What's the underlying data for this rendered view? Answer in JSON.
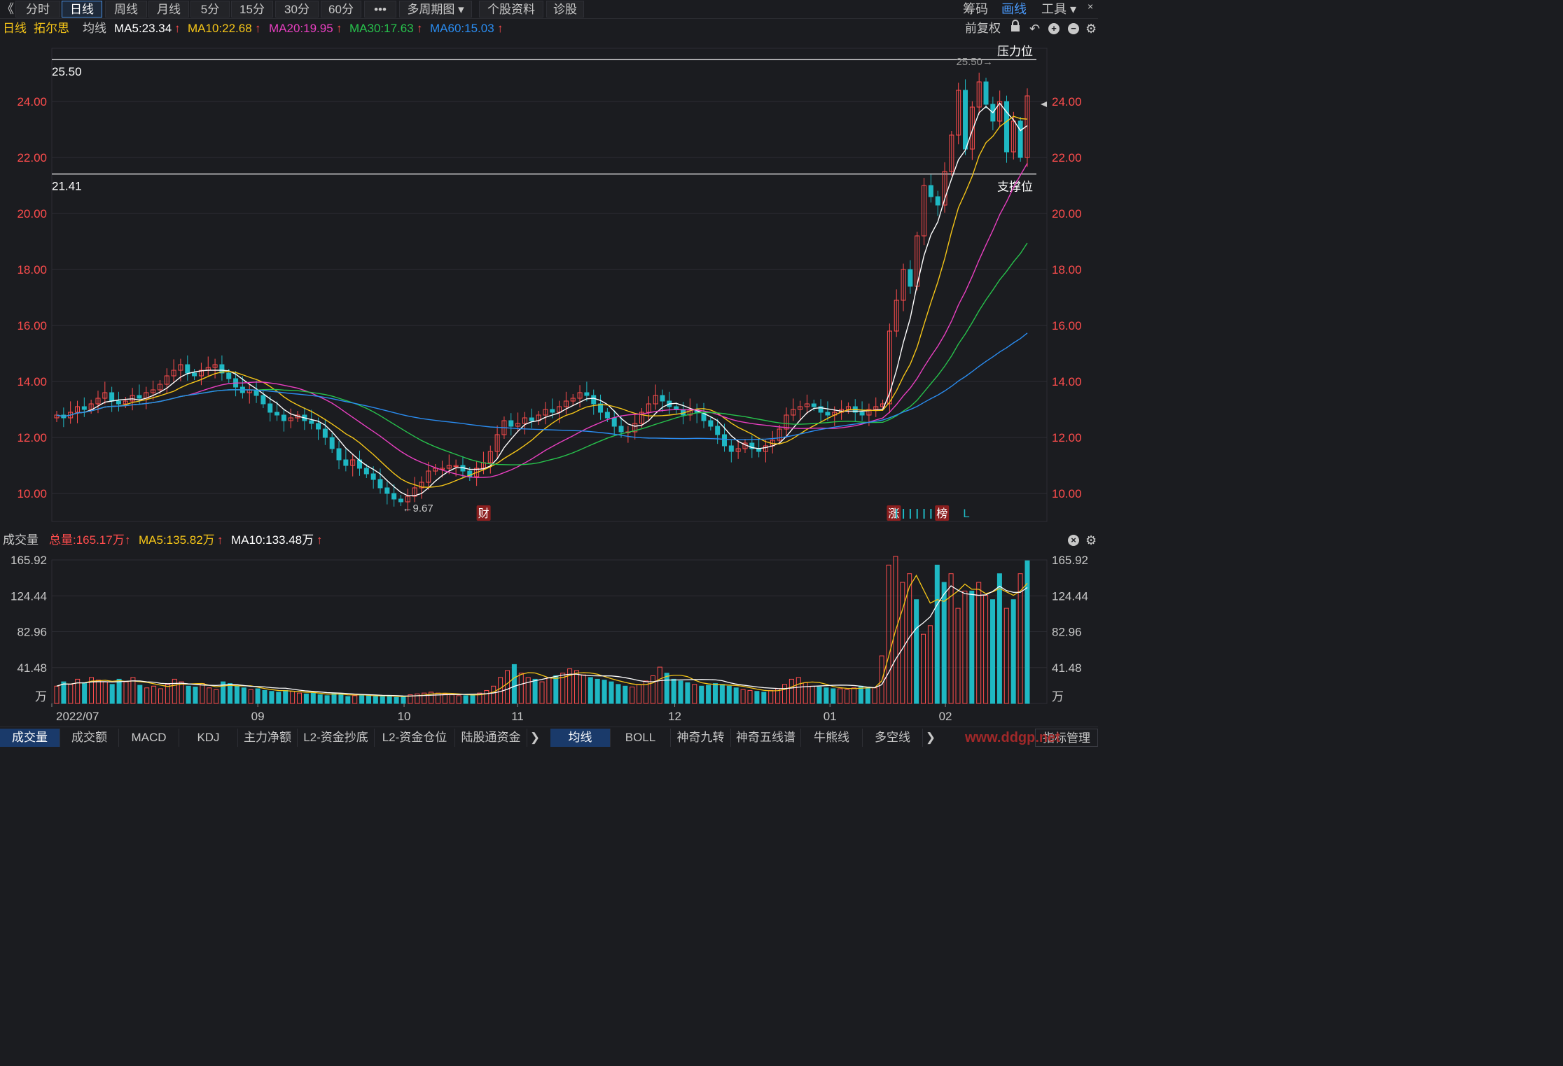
{
  "toolbar": {
    "back_icon": "《",
    "tabs": [
      {
        "label": "分时",
        "active": false
      },
      {
        "label": "日线",
        "active": true
      },
      {
        "label": "周线",
        "active": false
      },
      {
        "label": "月线",
        "active": false
      },
      {
        "label": "5分",
        "active": false
      },
      {
        "label": "15分",
        "active": false
      },
      {
        "label": "30分",
        "active": false
      },
      {
        "label": "60分",
        "active": false
      },
      {
        "label": "•••",
        "active": false
      },
      {
        "label": "多周期图 ▾",
        "active": false
      },
      {
        "label": "个股资料",
        "active": false
      },
      {
        "label": "诊股",
        "active": false
      }
    ],
    "chips": "筹码",
    "draw": "画线",
    "tools": "工具 ▾",
    "close_icon": "×"
  },
  "ma_bar": {
    "period": "日线",
    "stock_name": "拓尔思",
    "ma_label": "均线",
    "ma5": "MA5:23.34",
    "ma10": "MA10:22.68",
    "ma20": "MA20:19.95",
    "ma30": "MA30:17.63",
    "ma60": "MA60:15.03",
    "adjust": "前复权"
  },
  "colors": {
    "up": "#ff4d4d",
    "down": "#1fb8c3",
    "ma5": "#ffffff",
    "ma10": "#f5c518",
    "ma20": "#e83fc0",
    "ma30": "#27c24c",
    "ma60": "#2a8cf0",
    "axis": "#ff4d4d",
    "grid": "#2c2d33"
  },
  "price_axis": {
    "ticks": [
      "24.00",
      "22.00",
      "20.00",
      "18.00",
      "16.00",
      "14.00",
      "12.00",
      "10.00"
    ],
    "resistance_value": "25.50",
    "resistance_label": "压力位",
    "resistance_arrow_text": "25.50→",
    "support_value": "21.41",
    "support_label": "支撑位",
    "low_marker": "←9.67",
    "event_finance": "财",
    "event_limit": "涨",
    "event_list": "榜",
    "event_L": "L"
  },
  "volume": {
    "title": "成交量",
    "total": "总量:165.17万",
    "ma5": "MA5:135.82万",
    "ma10": "MA10:133.48万",
    "ticks": [
      "165.92",
      "124.44",
      "82.96",
      "41.48"
    ],
    "unit": "万"
  },
  "x_axis": {
    "labels": [
      "2022/07",
      "09",
      "10",
      "11",
      "12",
      "01",
      "02"
    ]
  },
  "bottom_tabs_left": [
    "成交量",
    "成交额",
    "MACD",
    "KDJ",
    "主力净额",
    "L2-资金抄底",
    "L2-资金仓位",
    "陆股通资金"
  ],
  "bottom_tabs_right": [
    "均线",
    "BOLL",
    "神奇九转",
    "神奇五线谱",
    "牛熊线",
    "多空线"
  ],
  "indicator_manage": "指标管理",
  "watermark": "www.ddgp.net",
  "chart_data": {
    "type": "candlestick",
    "title": "拓尔思",
    "ylim": [
      9.0,
      25.9
    ],
    "close_series": [
      12.8,
      12.7,
      12.9,
      13.1,
      13.0,
      13.2,
      13.4,
      13.6,
      13.3,
      13.2,
      13.3,
      13.5,
      13.4,
      13.6,
      13.7,
      13.9,
      14.2,
      14.4,
      14.6,
      14.3,
      14.2,
      14.4,
      14.5,
      14.6,
      14.3,
      14.1,
      13.8,
      13.6,
      13.7,
      13.5,
      13.2,
      12.9,
      12.8,
      12.6,
      12.7,
      12.8,
      12.6,
      12.5,
      12.3,
      12.0,
      11.6,
      11.2,
      11.0,
      11.2,
      10.9,
      10.7,
      10.5,
      10.2,
      10.0,
      9.8,
      9.7,
      9.9,
      10.2,
      10.4,
      10.8,
      10.9,
      10.9,
      11.0,
      11.0,
      10.8,
      10.6,
      10.9,
      11.1,
      11.5,
      12.1,
      12.6,
      12.4,
      12.5,
      12.7,
      12.6,
      12.8,
      13.0,
      12.9,
      13.1,
      13.3,
      13.4,
      13.6,
      13.5,
      13.2,
      12.9,
      12.7,
      12.4,
      12.2,
      12.2,
      12.5,
      12.9,
      13.2,
      13.5,
      13.3,
      13.1,
      13.0,
      12.8,
      13.0,
      12.9,
      12.6,
      12.4,
      12.1,
      11.7,
      11.5,
      11.6,
      11.8,
      11.6,
      11.5,
      11.7,
      11.9,
      12.3,
      12.8,
      13.0,
      13.1,
      13.2,
      13.1,
      12.9,
      12.8,
      12.9,
      13.0,
      13.1,
      12.9,
      12.8,
      13.0,
      13.1,
      13.2,
      15.8,
      16.9,
      18.0,
      17.4,
      19.2,
      21.0,
      20.6,
      20.3,
      21.5,
      22.8,
      24.4,
      22.3,
      23.8,
      24.7,
      23.9,
      23.3,
      24.0,
      22.2,
      23.3,
      22.0,
      24.2
    ],
    "volume_series_wan": [
      20,
      25,
      22,
      28,
      24,
      30,
      27,
      25,
      22,
      28,
      25,
      30,
      21,
      18,
      20,
      17,
      22,
      28,
      25,
      20,
      19,
      23,
      18,
      16,
      25,
      23,
      20,
      18,
      16,
      17,
      15,
      14,
      13,
      15,
      14,
      12,
      11,
      12,
      10,
      9,
      12,
      11,
      8,
      9,
      10,
      9,
      8,
      8,
      9,
      7,
      8,
      10,
      11,
      12,
      13,
      12,
      11,
      10,
      9,
      9,
      10,
      12,
      15,
      20,
      30,
      38,
      45,
      35,
      30,
      28,
      25,
      30,
      32,
      35,
      40,
      38,
      33,
      30,
      28,
      27,
      25,
      22,
      20,
      19,
      22,
      26,
      32,
      42,
      35,
      28,
      26,
      24,
      22,
      20,
      21,
      23,
      22,
      20,
      18,
      16,
      15,
      14,
      13,
      15,
      17,
      22,
      28,
      30,
      24,
      20,
      19,
      18,
      17,
      17,
      16,
      18,
      20,
      19,
      18,
      55,
      160,
      170,
      140,
      150,
      120,
      80,
      90,
      160,
      140,
      150,
      110,
      130,
      130,
      140,
      125,
      120,
      150,
      110,
      120,
      150,
      165
    ]
  }
}
